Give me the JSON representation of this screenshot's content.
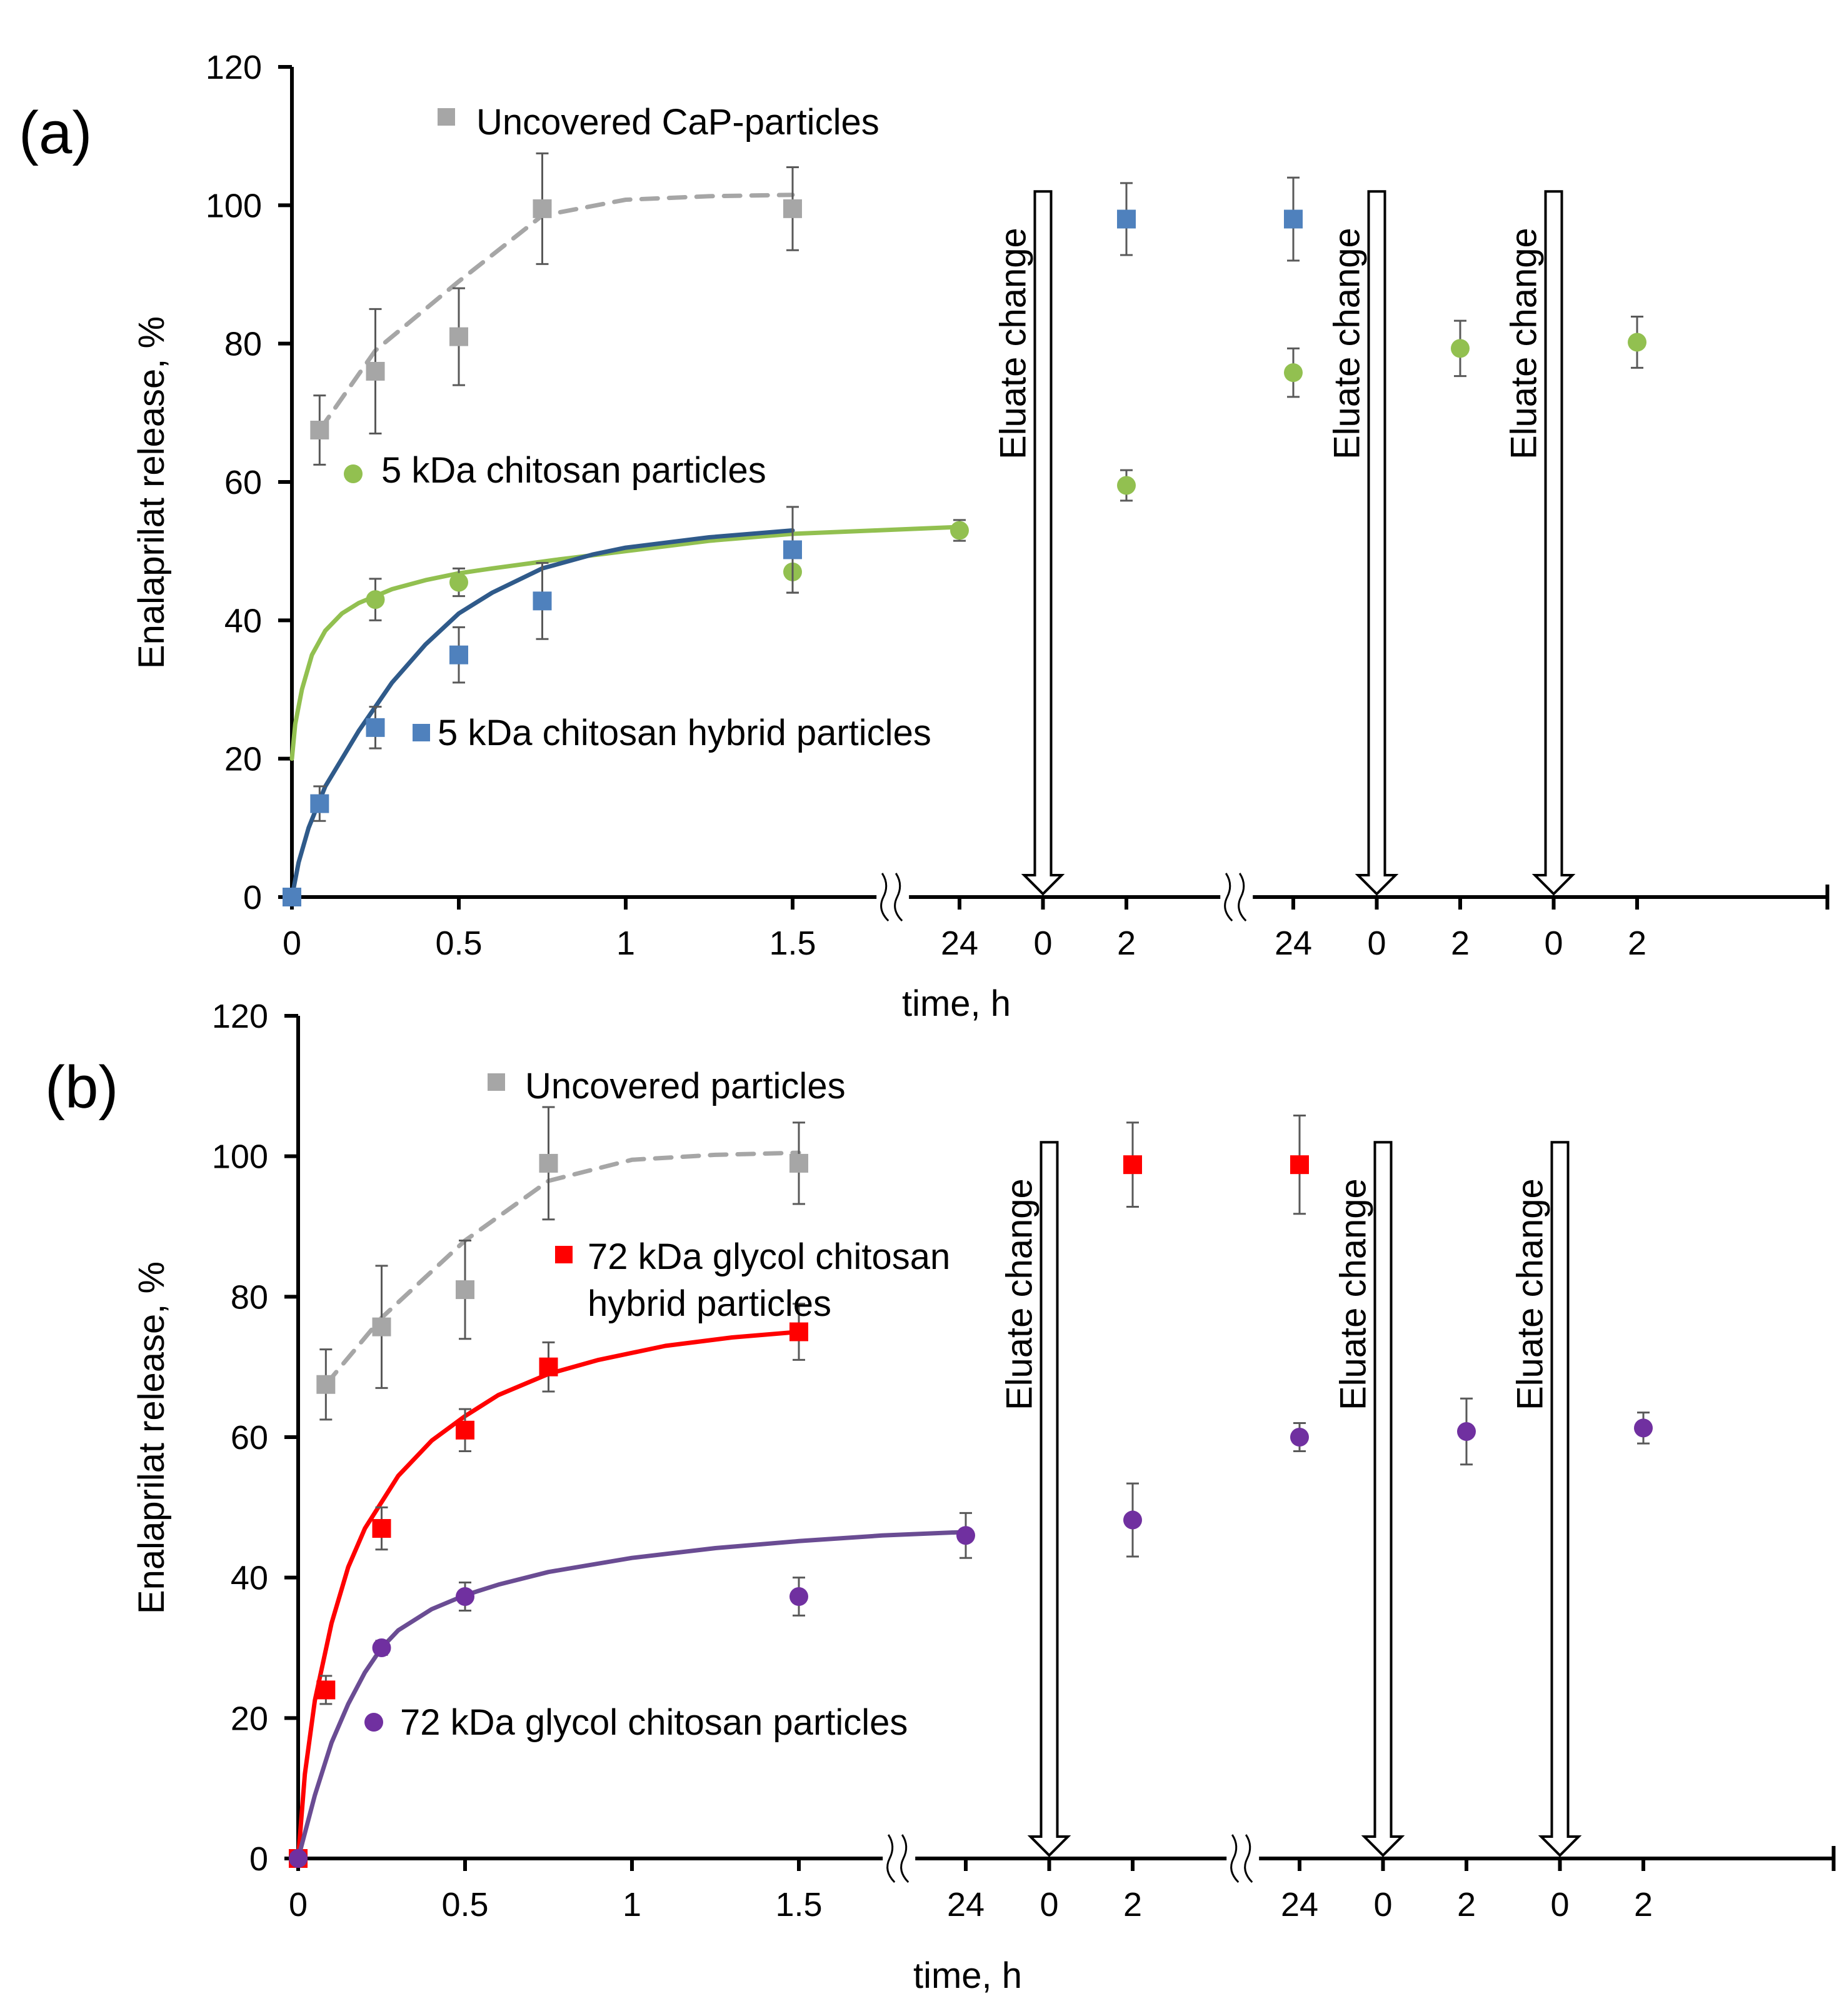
{
  "colors": {
    "gray": "#a6a6a6",
    "green": "#92c050",
    "blue": "#4f81bd",
    "dark_blue": "#2f5a8a",
    "red": "#ff0000",
    "purple": "#7030a0",
    "purple_line": "#6a4c93",
    "axis": "#000000",
    "error_bar": "#595959"
  },
  "chart_data": [
    {
      "type": "scatter",
      "panel_label": "(a)",
      "xlabel": "time, h",
      "ylabel": "Enalaprilat release, %",
      "ylim": [
        0,
        120
      ],
      "y_ticks": [
        0,
        20,
        40,
        60,
        80,
        100,
        120
      ],
      "x_ticks": [
        {
          "label": "0",
          "pos": 0
        },
        {
          "label": "0.5",
          "pos": 0.5
        },
        {
          "label": "1",
          "pos": 1
        },
        {
          "label": "1.5",
          "pos": 1.5
        },
        {
          "label": "24",
          "pos": 2
        },
        {
          "label": "0",
          "pos": 2.25
        },
        {
          "label": "2",
          "pos": 2.5
        },
        {
          "label": "24",
          "pos": 3
        },
        {
          "label": "0",
          "pos": 3.25
        },
        {
          "label": "2",
          "pos": 3.5
        },
        {
          "label": "0",
          "pos": 3.78
        },
        {
          "label": "2",
          "pos": 4.03
        }
      ],
      "x_axis_breaks": [
        1.8,
        2.83
      ],
      "eluate_change_label": "Eluate change",
      "eluate_changes": [
        2.25,
        3.25,
        3.78
      ],
      "series": [
        {
          "name": "Uncovered CaP-particles",
          "marker": "square",
          "color": "gray",
          "x": [
            0.083,
            0.25,
            0.5,
            0.75,
            1.5
          ],
          "y": [
            67.5,
            76,
            81,
            99.5,
            99.5
          ],
          "err": [
            5,
            9,
            7,
            8,
            6
          ],
          "fit": {
            "style": "dashed",
            "x": [
              0.083,
              0.25,
              0.5,
              0.75,
              1.0,
              1.25,
              1.5
            ],
            "y": [
              67.5,
              79,
              89,
              98.5,
              100.8,
              101.3,
              101.5
            ]
          }
        },
        {
          "name": "5 kDa chitosan particles",
          "marker": "circle",
          "color": "green",
          "x": [
            0.25,
            0.5,
            1.5,
            2,
            2.5,
            3,
            3.5,
            4.03
          ],
          "y": [
            43,
            45.5,
            47,
            53,
            59.5,
            75.8,
            79.3,
            80.2
          ],
          "err": [
            3,
            2,
            3,
            1.5,
            2.2,
            3.5,
            4,
            3.7
          ],
          "fit": {
            "style": "solid",
            "x": [
              0,
              0.01,
              0.03,
              0.06,
              0.1,
              0.15,
              0.2,
              0.3,
              0.4,
              0.5,
              0.6,
              0.8,
              1.0,
              1.25,
              1.5,
              1.75,
              2.0
            ],
            "y": [
              20,
              25,
              30,
              35,
              38.5,
              41,
              42.5,
              44.5,
              45.8,
              46.8,
              47.5,
              48.8,
              50,
              51.5,
              52.5,
              53,
              53.5
            ]
          }
        },
        {
          "name": "5 kDa chitosan hybrid particles",
          "marker": "square",
          "color": "blue",
          "x": [
            0,
            0.083,
            0.25,
            0.5,
            0.75,
            1.5,
            2.5,
            3
          ],
          "y": [
            0,
            13.5,
            24.5,
            35,
            42.8,
            50.2,
            98,
            98
          ],
          "err": [
            0,
            2.5,
            3,
            4,
            5.5,
            6.2,
            5.2,
            6
          ],
          "fit": {
            "style": "solid",
            "color": "dark_blue",
            "x": [
              0,
              0.02,
              0.05,
              0.1,
              0.2,
              0.3,
              0.4,
              0.5,
              0.6,
              0.75,
              0.9,
              1.0,
              1.25,
              1.5
            ],
            "y": [
              0,
              5,
              10,
              16,
              24,
              31,
              36.5,
              41,
              44,
              47.5,
              49.5,
              50.5,
              52,
              53
            ]
          }
        }
      ]
    },
    {
      "type": "scatter",
      "panel_label": "(b)",
      "xlabel": "time, h",
      "ylabel": "Enalaprilat release, %",
      "ylim": [
        0,
        120
      ],
      "y_ticks": [
        0,
        20,
        40,
        60,
        80,
        100,
        120
      ],
      "x_ticks": [
        {
          "label": "0",
          "pos": 0
        },
        {
          "label": "0.5",
          "pos": 0.5
        },
        {
          "label": "1",
          "pos": 1
        },
        {
          "label": "1.5",
          "pos": 1.5
        },
        {
          "label": "24",
          "pos": 2
        },
        {
          "label": "0",
          "pos": 2.25
        },
        {
          "label": "2",
          "pos": 2.5
        },
        {
          "label": "24",
          "pos": 3
        },
        {
          "label": "0",
          "pos": 3.25
        },
        {
          "label": "2",
          "pos": 3.5
        },
        {
          "label": "0",
          "pos": 3.78
        },
        {
          "label": "2",
          "pos": 4.03
        }
      ],
      "x_axis_breaks": [
        1.8,
        2.83
      ],
      "eluate_change_label": "Eluate change",
      "eluate_changes": [
        2.25,
        3.25,
        3.78
      ],
      "series": [
        {
          "name": "Uncovered particles",
          "marker": "square",
          "color": "gray",
          "x": [
            0.083,
            0.25,
            0.5,
            0.75,
            1.5
          ],
          "y": [
            67.5,
            75.7,
            81,
            99,
            99
          ],
          "err": [
            5,
            8.7,
            7,
            8,
            5.8
          ],
          "fit": {
            "style": "dashed",
            "x": [
              0.083,
              0.25,
              0.5,
              0.75,
              1.0,
              1.25,
              1.5
            ],
            "y": [
              67.5,
              77,
              88,
              96.5,
              99.5,
              100.2,
              100.5
            ]
          }
        },
        {
          "name": "72 kDa glycol chitosan hybrid particles",
          "marker": "square",
          "color": "red",
          "legend_lines": [
            "72 kDa glycol chitosan",
            "hybrid particles"
          ],
          "x": [
            0,
            0.083,
            0.25,
            0.5,
            0.75,
            1.5,
            2.5,
            3
          ],
          "y": [
            0,
            24,
            47,
            61,
            70,
            75,
            98.8,
            98.8
          ],
          "err": [
            0,
            2,
            3,
            3,
            3.5,
            4,
            6,
            7
          ],
          "fit": {
            "style": "solid",
            "x": [
              0,
              0.02,
              0.05,
              0.1,
              0.15,
              0.2,
              0.3,
              0.4,
              0.5,
              0.6,
              0.75,
              0.9,
              1.1,
              1.3,
              1.5
            ],
            "y": [
              0,
              12,
              22.5,
              33.5,
              41.5,
              47,
              54.5,
              59.5,
              63,
              66,
              69,
              71,
              73,
              74.2,
              75
            ]
          }
        },
        {
          "name": "72 kDa glycol chitosan particles",
          "marker": "circle",
          "color": "purple",
          "x": [
            0,
            0.25,
            0.5,
            1.5,
            2,
            2.5,
            3,
            3.5,
            4.03
          ],
          "y": [
            0,
            30,
            37.3,
            37.3,
            46,
            48.2,
            60,
            60.8,
            61.3
          ],
          "err": [
            0,
            1,
            2,
            2.7,
            3.2,
            5.2,
            2,
            4.7,
            2.2
          ],
          "fit": {
            "style": "solid",
            "color": "purple_line",
            "x": [
              0,
              0.05,
              0.1,
              0.15,
              0.2,
              0.25,
              0.3,
              0.4,
              0.5,
              0.6,
              0.75,
              1.0,
              1.25,
              1.5,
              1.75,
              2.0
            ],
            "y": [
              0,
              9,
              16.5,
              22,
              26.5,
              30,
              32.5,
              35.5,
              37.5,
              39,
              40.8,
              42.8,
              44.2,
              45.2,
              46,
              46.5
            ]
          }
        }
      ]
    }
  ]
}
